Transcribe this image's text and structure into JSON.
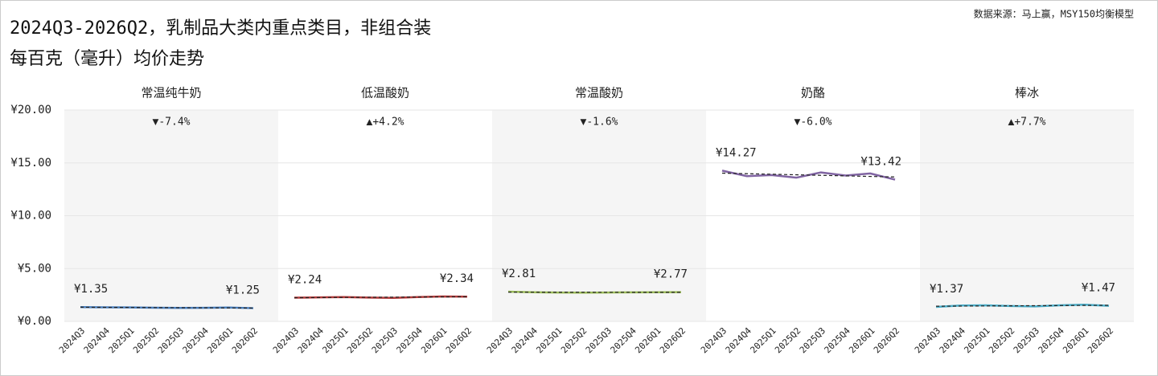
{
  "title": [
    "2024Q3-2026Q2，乳制品大类内重点类目，非组合装",
    "每百克（毫升）均价走势"
  ],
  "source": "数据来源：马上赢，MSY150均衡模型",
  "chart_data": [
    {
      "type": "line",
      "title": "常温纯牛奶",
      "change_label": "▼-7.4%",
      "change_color": "#e8202a",
      "categories": [
        "2024Q3",
        "2024Q4",
        "2025Q1",
        "2025Q2",
        "2025Q3",
        "2025Q4",
        "2026Q1",
        "2026Q2"
      ],
      "series": [
        {
          "color": "#4a7ebb",
          "values": [
            1.35,
            1.33,
            1.32,
            1.29,
            1.27,
            1.28,
            1.31,
            1.25
          ],
          "value_labels": [
            "¥1.35",
            null,
            null,
            null,
            null,
            null,
            null,
            "¥1.25"
          ]
        }
      ],
      "ylim": [
        0,
        20
      ],
      "yticks": [
        {
          "value": 0,
          "label": "¥0.00"
        },
        {
          "value": 5,
          "label": "¥5.00"
        },
        {
          "value": 10,
          "label": "¥10.00"
        },
        {
          "value": 15,
          "label": "¥15.00"
        },
        {
          "value": 20,
          "label": "¥20.00"
        }
      ]
    },
    {
      "type": "line",
      "title": "低温酸奶",
      "change_label": "▲+4.2%",
      "change_color": "#1aa84a",
      "categories": [
        "2024Q3",
        "2024Q4",
        "2025Q1",
        "2025Q2",
        "2025Q3",
        "2025Q4",
        "2026Q1",
        "2026Q2"
      ],
      "series": [
        {
          "color": "#b03a3a",
          "values": [
            2.24,
            2.27,
            2.3,
            2.25,
            2.22,
            2.3,
            2.36,
            2.34
          ],
          "value_labels": [
            "¥2.24",
            null,
            null,
            null,
            null,
            null,
            null,
            "¥2.34"
          ]
        }
      ],
      "ylim": [
        0,
        20
      ]
    },
    {
      "type": "line",
      "title": "常温酸奶",
      "change_label": "▼-1.6%",
      "change_color": "#e8202a",
      "categories": [
        "2024Q3",
        "2024Q4",
        "2025Q1",
        "2025Q2",
        "2025Q3",
        "2025Q4",
        "2026Q1",
        "2026Q2"
      ],
      "series": [
        {
          "color": "#9bbb59",
          "values": [
            2.81,
            2.76,
            2.73,
            2.72,
            2.73,
            2.75,
            2.76,
            2.77
          ],
          "value_labels": [
            "¥2.81",
            null,
            null,
            null,
            null,
            null,
            null,
            "¥2.77"
          ]
        }
      ],
      "ylim": [
        0,
        20
      ]
    },
    {
      "type": "line",
      "title": "奶酪",
      "change_label": "▼-6.0%",
      "change_color": "#e8202a",
      "categories": [
        "2024Q3",
        "2024Q4",
        "2025Q1",
        "2025Q2",
        "2025Q3",
        "2025Q4",
        "2026Q1",
        "2026Q2"
      ],
      "series": [
        {
          "color": "#8064a2",
          "values": [
            14.27,
            13.75,
            13.85,
            13.6,
            14.1,
            13.8,
            14.0,
            13.42
          ],
          "value_labels": [
            "¥14.27",
            null,
            null,
            null,
            null,
            null,
            null,
            "¥13.42"
          ]
        }
      ],
      "ylim": [
        0,
        20
      ]
    },
    {
      "type": "line",
      "title": "棒冰",
      "change_label": "▲+7.7%",
      "change_color": "#1aa84a",
      "categories": [
        "2024Q3",
        "2024Q4",
        "2025Q1",
        "2025Q2",
        "2025Q3",
        "2025Q4",
        "2026Q1",
        "2026Q2"
      ],
      "series": [
        {
          "color": "#4bacc6",
          "values": [
            1.37,
            1.5,
            1.52,
            1.45,
            1.42,
            1.52,
            1.58,
            1.47
          ],
          "value_labels": [
            "¥1.37",
            null,
            null,
            null,
            null,
            null,
            null,
            "¥1.47"
          ]
        }
      ],
      "ylim": [
        0,
        20
      ]
    }
  ]
}
